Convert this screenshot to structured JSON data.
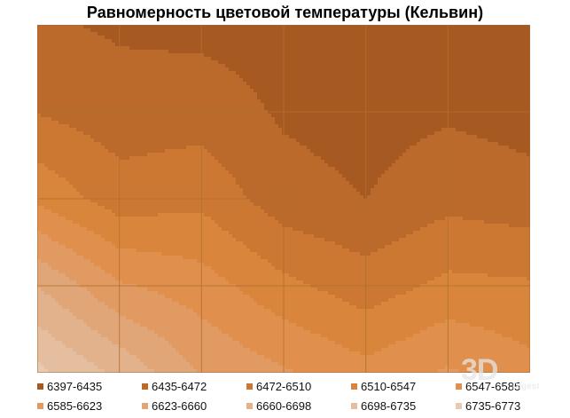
{
  "chart_data": {
    "type": "heatmap",
    "style": "contour",
    "title": "Равномерность цветовой температуры (Кельвин)",
    "grid": true,
    "legend_position": "bottom",
    "columns": 7,
    "rows": 5,
    "values": [
      [
        6440,
        6430,
        6425,
        6420,
        6410,
        6405,
        6400
      ],
      [
        6470,
        6450,
        6455,
        6430,
        6420,
        6430,
        6420
      ],
      [
        6540,
        6490,
        6500,
        6450,
        6435,
        6460,
        6450
      ],
      [
        6660,
        6590,
        6565,
        6520,
        6490,
        6520,
        6515
      ],
      [
        6745,
        6690,
        6620,
        6590,
        6560,
        6590,
        6560
      ]
    ],
    "legend": [
      {
        "label": "6397-6435",
        "color": "#a65a22"
      },
      {
        "label": "6435-6472",
        "color": "#bb6a2b"
      },
      {
        "label": "6472-6510",
        "color": "#cc7833"
      },
      {
        "label": "6510-6547",
        "color": "#d9853c"
      },
      {
        "label": "6547-6585",
        "color": "#e08f4c"
      },
      {
        "label": "6585-6623",
        "color": "#e09a62"
      },
      {
        "label": "6623-6660",
        "color": "#e0a678"
      },
      {
        "label": "6660-6698",
        "color": "#e2b28c"
      },
      {
        "label": "6698-6735",
        "color": "#e5bea0"
      },
      {
        "label": "6735-6773",
        "color": "#e8cab3"
      }
    ]
  },
  "watermark": {
    "main": "3D",
    "sub": "Digest"
  }
}
